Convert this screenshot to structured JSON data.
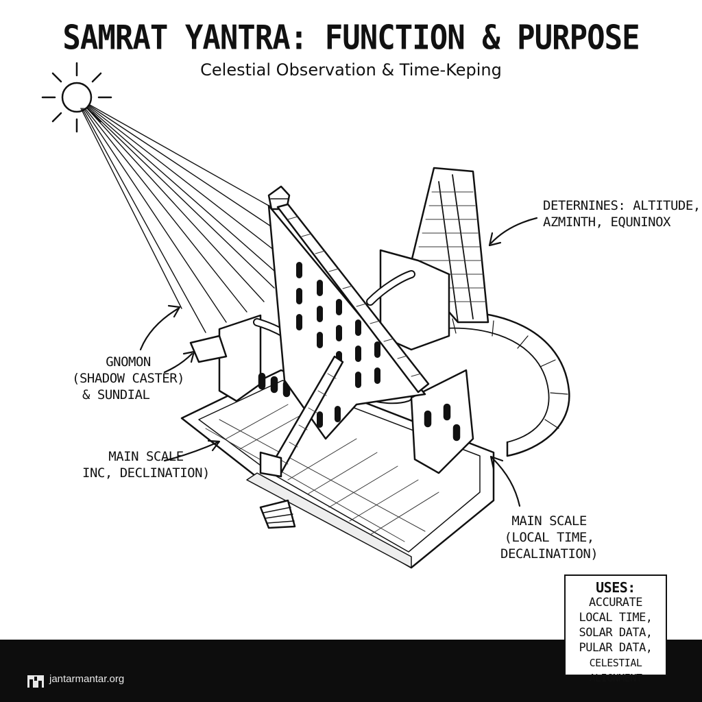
{
  "title": "SAMRAT YANTRA: FUNCTION & PURPOSE",
  "subtitle": "Celestial Observation & Time-Keping",
  "labels": {
    "determines": [
      "DETERNINES: ALTITUDE,",
      "AZMINTH, EQUNINOX"
    ],
    "gnomon": [
      "GNOMON",
      "(SHADOW CASTER)"
    ],
    "gnomon_sub": "& SUNDIAL",
    "main_scale_left": [
      "MAIN SCALE",
      "INC, DECLINATION)"
    ],
    "main_scale_right": [
      "MAIN SCALE",
      "(LOCAL TIME,",
      "DECALINATION)"
    ]
  },
  "uses": {
    "heading": "USES:",
    "items": [
      "ACCURATE",
      "LOCAL TIME,",
      "SOLAR DATA,",
      "PULAR DATA,",
      "CELESTIAL ALIGNMENT"
    ]
  },
  "footer": {
    "site": "jantarmantar.org"
  },
  "icons": [
    "sun-icon",
    "logo-icon"
  ]
}
